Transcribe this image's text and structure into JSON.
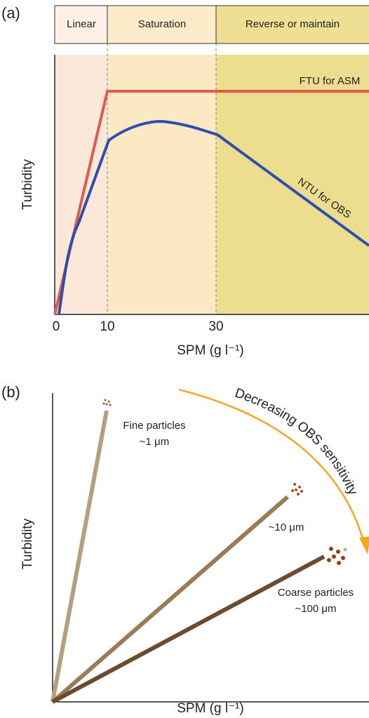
{
  "panel_a": {
    "label": "(a)",
    "zones": [
      "Linear",
      "Saturation",
      "Reverse or maintain"
    ],
    "curves": [
      "FTU for ASM",
      "NTU for OBS"
    ],
    "y_axis_label": "Turbidity",
    "x_ticks": [
      "0",
      "10",
      "30"
    ],
    "x_axis_label": "SPM (g l⁻¹)"
  },
  "panel_b": {
    "label": "(b)",
    "arrow_label": "Decreasing OBS sensitivity",
    "particles": [
      {
        "name": "Fine particles",
        "size": "~1 μm"
      },
      {
        "size": "~10 μm"
      },
      {
        "name": "Coarse particles",
        "size": "~100 μm"
      }
    ],
    "y_axis_label": "Turbidity",
    "x_axis_label": "SPM (g l⁻¹)"
  }
}
